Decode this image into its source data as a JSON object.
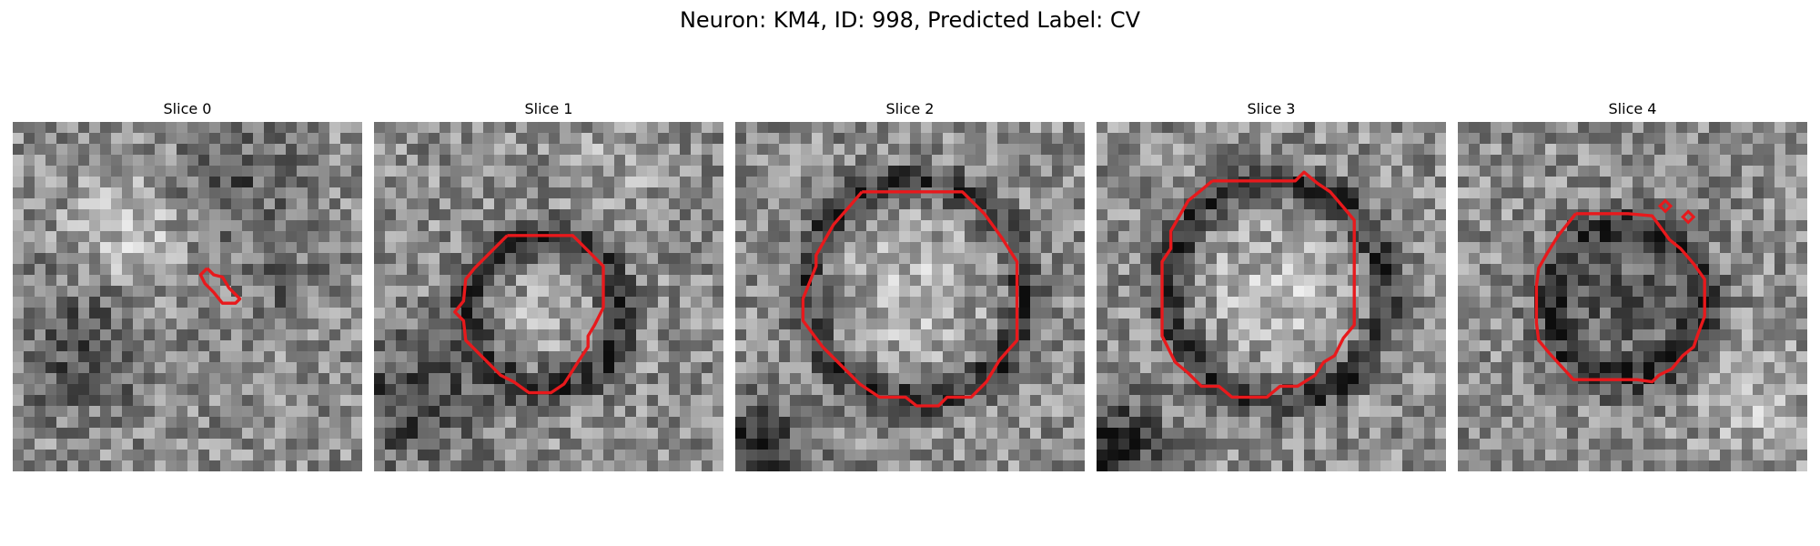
{
  "figure": {
    "title": "Neuron: KM4, ID: 998, Predicted Label: CV"
  },
  "panels": [
    {
      "label": "Slice 0",
      "seed": 11,
      "pattern": "diffuse",
      "contour_color": "#e8191c"
    },
    {
      "label": "Slice 1",
      "seed": 23,
      "pattern": "ring-offset",
      "contour_color": "#e8191c"
    },
    {
      "label": "Slice 2",
      "seed": 37,
      "pattern": "ring-large",
      "contour_color": "#e8191c"
    },
    {
      "label": "Slice 3",
      "seed": 41,
      "pattern": "ring-large",
      "contour_color": "#e8191c"
    },
    {
      "label": "Slice 4",
      "seed": 53,
      "pattern": "ring-dark",
      "contour_color": "#e8191c"
    }
  ]
}
